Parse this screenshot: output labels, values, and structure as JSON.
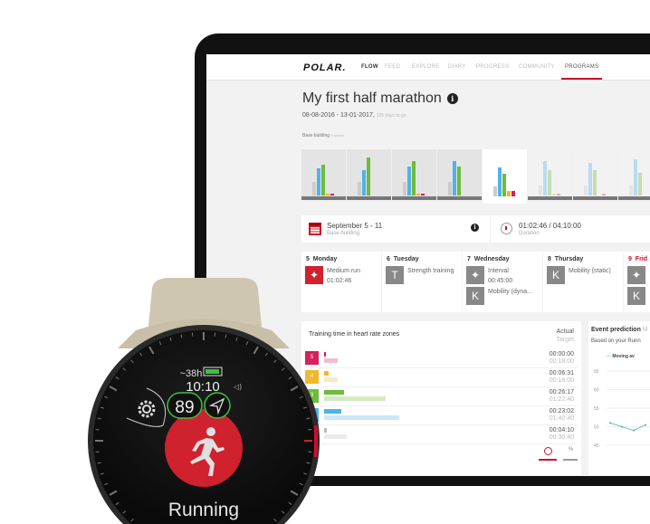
{
  "nav": {
    "logo": "POLAR.",
    "tabs": [
      "FLOW",
      "FEED",
      "EXPLORE",
      "DIARY",
      "PROGRESS",
      "COMMUNITY",
      "PROGRAMS"
    ],
    "active": "PROGRAMS"
  },
  "program": {
    "title": "My first half marathon",
    "dates": "08-08-2016 - 13-01-2017,",
    "days_left": "125 days to go",
    "phase": "Base building",
    "phase_len": "9 weeks"
  },
  "weeks": [
    {
      "zones": [
        8,
        16,
        18,
        1,
        1
      ],
      "state": "past"
    },
    {
      "zones": [
        8,
        15,
        22,
        0,
        0
      ],
      "state": "past"
    },
    {
      "zones": [
        8,
        17,
        20,
        1,
        1
      ],
      "state": "past"
    },
    {
      "zones": [
        8,
        20,
        17,
        0,
        0
      ],
      "state": "past"
    },
    {
      "zones": [
        6,
        17,
        13,
        3,
        3
      ],
      "state": "current"
    },
    {
      "zones": [
        6,
        20,
        15,
        1,
        1
      ],
      "state": "future"
    },
    {
      "zones": [
        6,
        19,
        15,
        0,
        1
      ],
      "state": "future"
    },
    {
      "zones": [
        6,
        21,
        13,
        0,
        0
      ],
      "state": "future"
    }
  ],
  "week_card": {
    "range": "September 5 - 11",
    "phase": "Base building",
    "duration": "01:02:46 / 04:10:00",
    "duration_label": "Duration"
  },
  "days": [
    {
      "num": "5",
      "name": "Monday",
      "items": [
        {
          "label": "Medium run",
          "time": "01:02:46",
          "icon": "running-icon",
          "done": true
        }
      ]
    },
    {
      "num": "6",
      "name": "Tuesday",
      "items": [
        {
          "label": "Strength training",
          "time": "",
          "icon": "strength-icon",
          "done": false
        }
      ]
    },
    {
      "num": "7",
      "name": "Wednesday",
      "items": [
        {
          "label": "Interval",
          "time": "00:45:00",
          "icon": "running-icon",
          "done": false
        },
        {
          "label": "Mobility (dyna...",
          "time": "",
          "icon": "mobility-icon",
          "done": false
        }
      ]
    },
    {
      "num": "8",
      "name": "Thursday",
      "items": [
        {
          "label": "Mobility (static)",
          "time": "",
          "icon": "mobility-icon",
          "done": false
        }
      ]
    },
    {
      "num": "9",
      "name": "Frid",
      "items": [
        {
          "label": "",
          "time": "",
          "icon": "running-icon",
          "done": false
        },
        {
          "label": "",
          "time": "",
          "icon": "mobility-icon",
          "done": false
        }
      ]
    }
  ],
  "hr_zones": {
    "title": "Training time in heart rate zones",
    "actual_label": "Actual",
    "target_label": "Target",
    "percent_label": "%",
    "zones": [
      {
        "zone": "5",
        "color": "#d6215b",
        "actual": "00:00:00",
        "target": "00:18:00"
      },
      {
        "zone": "4",
        "color": "#f3b72b",
        "actual": "00:06:31",
        "target": "00:18:00"
      },
      {
        "zone": "3",
        "color": "#6fbb3a",
        "actual": "00:26:17",
        "target": "01:22:40"
      },
      {
        "zone": "2",
        "color": "#4fb3e8",
        "actual": "00:23:02",
        "target": "01:40:40"
      },
      {
        "zone": "1",
        "color": "#bbbbbb",
        "actual": "00:04:10",
        "target": "00:30:40"
      }
    ]
  },
  "prediction": {
    "title": "Event prediction",
    "title_suffix": "M",
    "subtitle": "Based on your Runn",
    "legend": "Moving av",
    "yticks": [
      "65",
      "60",
      "55",
      "50",
      "45"
    ],
    "points": [
      51,
      50,
      49,
      50.5
    ]
  },
  "watch": {
    "battery": "~38h",
    "time": "10:10",
    "hr": "89",
    "activity": "Running",
    "accent": "#d0212f",
    "ring": "#3ec33e"
  }
}
